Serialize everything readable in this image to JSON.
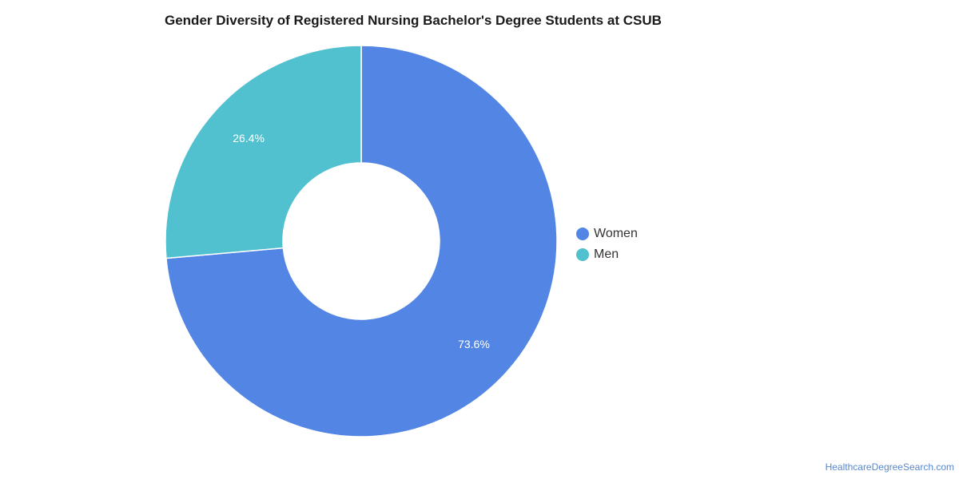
{
  "chart_data": {
    "type": "pie",
    "title": "Gender Diversity of Registered Nursing Bachelor's Degree Students at CSUB",
    "categories": [
      "Women",
      "Men"
    ],
    "values": [
      73.6,
      26.4
    ],
    "value_labels": [
      "73.6%",
      "26.4%"
    ],
    "colors": [
      "#5386e4",
      "#51c1cf"
    ],
    "donut": true,
    "legend": "right",
    "grid": false
  },
  "footer": {
    "source": "HealthcareDegreeSearch.com"
  }
}
